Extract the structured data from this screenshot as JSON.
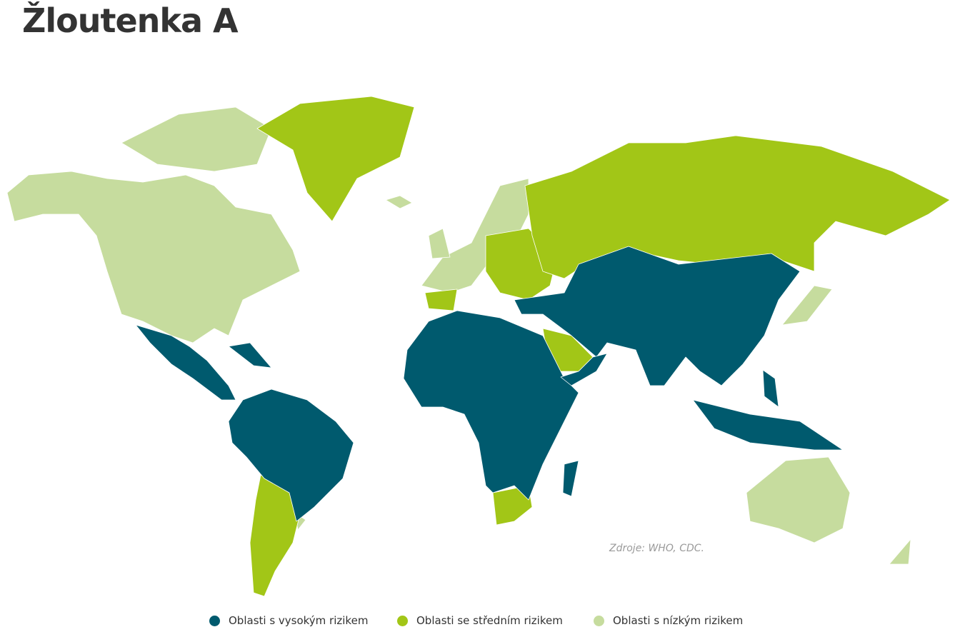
{
  "title": "Žloutenka A",
  "source": "Zdroje: WHO, CDC.",
  "colors": {
    "high": "#005a6e",
    "medium": "#a2c617",
    "low": "#c6dc9e"
  },
  "legend": [
    {
      "label": "Oblasti s vysokým rizikem",
      "color": "#005a6e"
    },
    {
      "label": "Oblasti se středním rizikem",
      "color": "#a2c617"
    },
    {
      "label": "Oblasti s nízkým rizikem",
      "color": "#c6dc9e"
    }
  ]
}
